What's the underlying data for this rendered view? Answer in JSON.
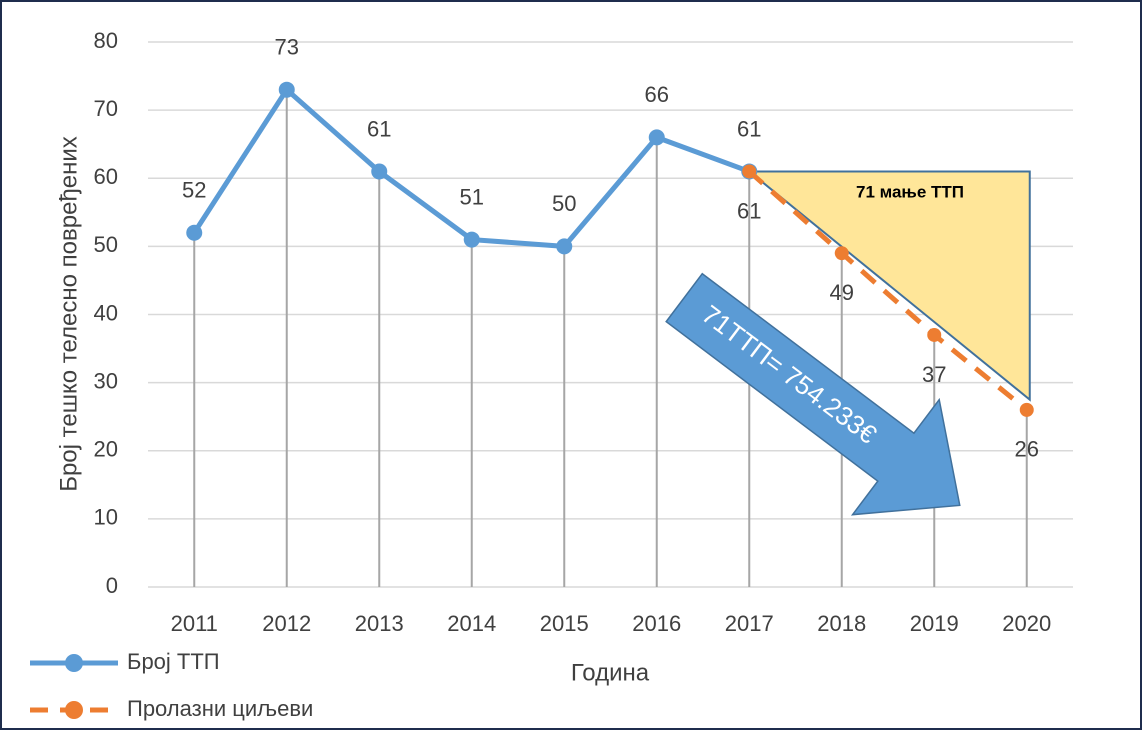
{
  "chart_data": {
    "type": "line",
    "y_label": "Број тешко телесно повређених",
    "x_label": "Година",
    "categories": [
      "2011",
      "2012",
      "2013",
      "2014",
      "2015",
      "2016",
      "2017",
      "2018",
      "2019",
      "2020"
    ],
    "series": [
      {
        "name": "Број ТТП",
        "color": "#5b9bd5",
        "values": [
          52,
          73,
          61,
          51,
          50,
          66,
          61,
          null,
          null,
          null
        ]
      },
      {
        "name": "Пролазни циљеви",
        "color": "#ed7d31",
        "dashed": true,
        "values": [
          null,
          null,
          null,
          null,
          null,
          null,
          61,
          49,
          37,
          26
        ]
      }
    ],
    "ylim": [
      0,
      80
    ],
    "yticks": [
      0,
      10,
      20,
      30,
      40,
      50,
      60,
      70,
      80
    ],
    "grid": true,
    "annotations": [
      "71 мање ТТП",
      "71ТТП= 754.233€"
    ]
  }
}
